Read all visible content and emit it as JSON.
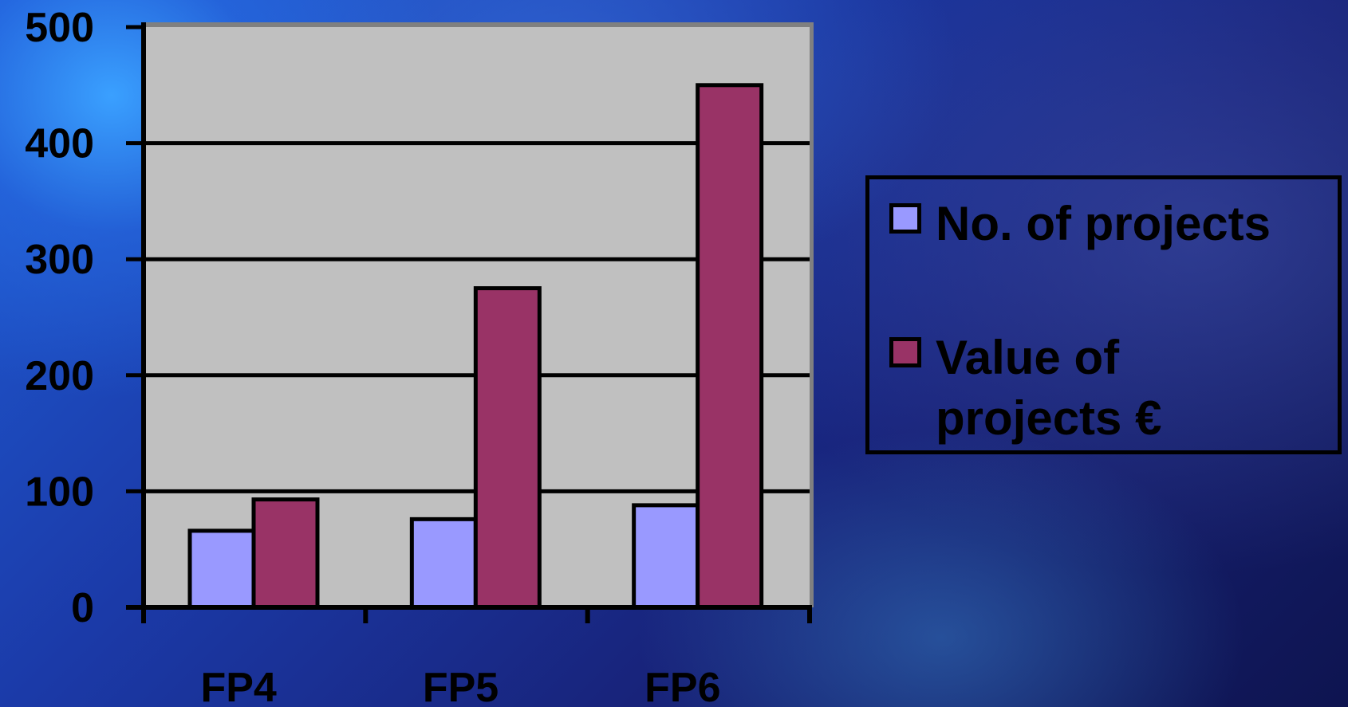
{
  "chart_data": {
    "type": "bar",
    "title": "",
    "xlabel": "",
    "ylabel": "",
    "categories": [
      "FP4",
      "FP5",
      "FP6"
    ],
    "series": [
      {
        "name": "No. of projects",
        "values": [
          66,
          76,
          88
        ],
        "color": "#9999ff"
      },
      {
        "name": "Value of projects €",
        "values": [
          93,
          275,
          450
        ],
        "color": "#993366"
      }
    ],
    "yticks": [
      "0",
      "100",
      "200",
      "300",
      "400",
      "500"
    ],
    "ylim": [
      0,
      500
    ],
    "grid": true,
    "legend_position": "right",
    "plot_background": "#c0c0c0"
  }
}
